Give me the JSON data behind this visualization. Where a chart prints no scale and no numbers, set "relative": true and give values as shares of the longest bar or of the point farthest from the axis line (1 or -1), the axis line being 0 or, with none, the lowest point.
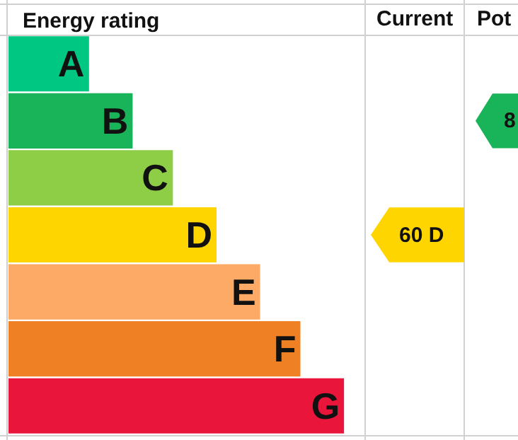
{
  "chart_data": {
    "type": "bar",
    "orientation": "horizontal",
    "relative": true,
    "title": "Energy rating",
    "categories": [
      "A",
      "B",
      "C",
      "D",
      "E",
      "F",
      "G"
    ],
    "values": [
      0.24,
      0.37,
      0.49,
      0.62,
      0.75,
      0.87,
      1
    ],
    "colors": [
      "#00c781",
      "#19b459",
      "#8dce46",
      "#ffd500",
      "#fcaa65",
      "#ef8023",
      "#e9153b"
    ],
    "annotations": [
      "Current",
      "Pot",
      "60 D",
      "8"
    ],
    "grid": false,
    "legend": false
  }
}
